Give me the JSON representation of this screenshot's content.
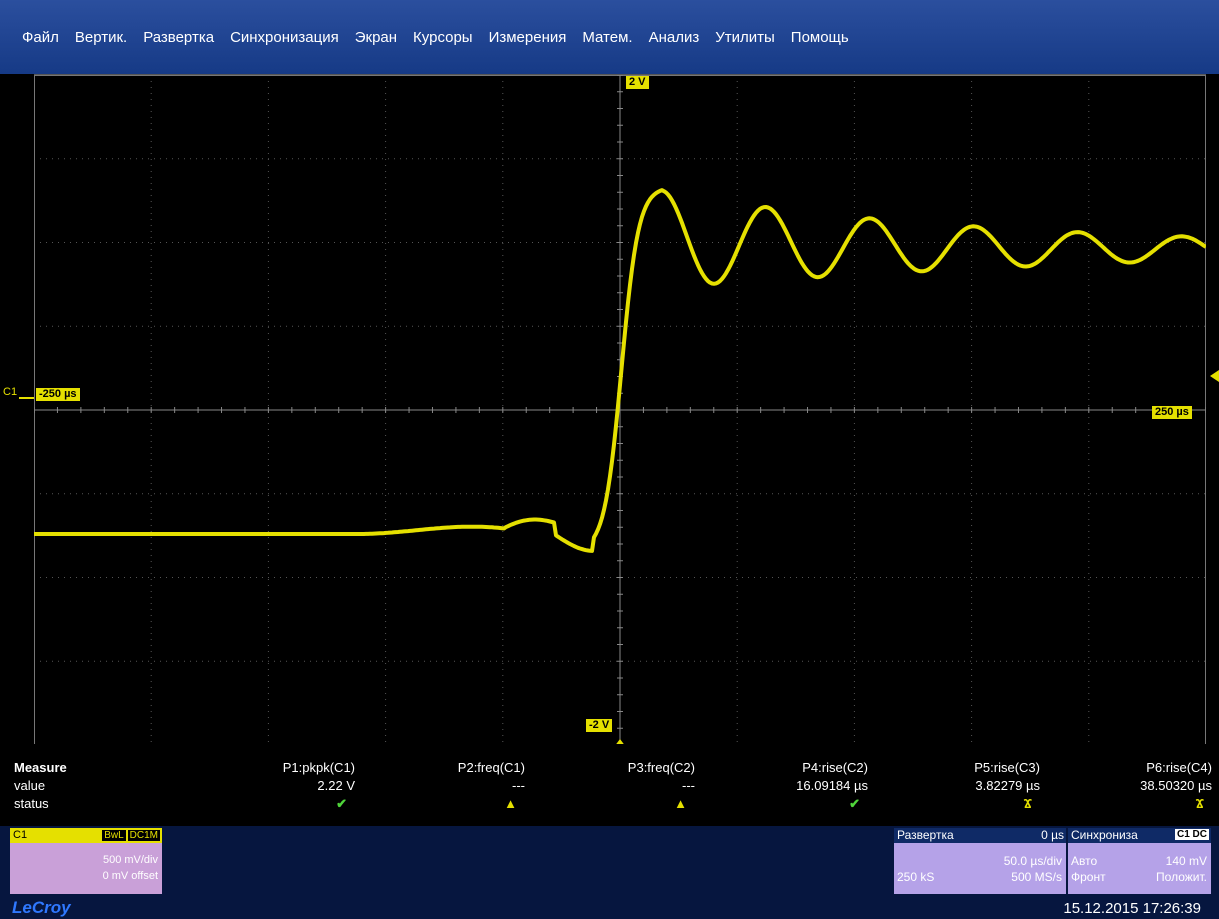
{
  "menu": [
    "Файл",
    "Вертик.",
    "Развертка",
    "Синхронизация",
    "Экран",
    "Курсоры",
    "Измерения",
    "Матем.",
    "Анализ",
    "Утилиты",
    "Помощь"
  ],
  "screen": {
    "top_marker": "2 V",
    "bottom_marker": "-2 V",
    "left_time": "-250 µs",
    "right_time": "250 µs",
    "channel_label": "C1",
    "trace_color": "#e5e000",
    "grid_divisions": {
      "x": 10,
      "y": 8
    }
  },
  "measure": {
    "title": "Measure",
    "row_value": "value",
    "row_status": "status",
    "params": [
      {
        "name": "P1:pkpk(C1)",
        "value": "2.22 V",
        "status": "✔",
        "status_kind": "ok"
      },
      {
        "name": "P2:freq(C1)",
        "value": "---",
        "status": "▲",
        "status_kind": "warn"
      },
      {
        "name": "P3:freq(C2)",
        "value": "---",
        "status": "▲",
        "status_kind": "warn"
      },
      {
        "name": "P4:rise(C2)",
        "value": "16.09184 µs",
        "status": "✔",
        "status_kind": "ok"
      },
      {
        "name": "P5:rise(C3)",
        "value": "3.82279 µs",
        "status": "Ϫ",
        "status_kind": "pers"
      },
      {
        "name": "P6:rise(C4)",
        "value": "38.50320 µs",
        "status": "Ϫ",
        "status_kind": "pers"
      }
    ]
  },
  "channel_box": {
    "name": "C1",
    "bwl": "BwL",
    "coupling": "DC1M",
    "scale": "500 mV/div",
    "offset": "0 mV offset"
  },
  "timebase": {
    "title": "Развертка",
    "delay": "0 µs",
    "scale": "50.0 µs/div",
    "samples": "250 kS",
    "rate": "500 MS/s"
  },
  "trigger": {
    "title": "Синхрониза",
    "tag": "C1 DC",
    "mode": "Авто",
    "level": "140 mV",
    "type": "Фронт",
    "slope": "Положит."
  },
  "brand": "LeCroy",
  "datetime": "15.12.2015 17:26:39"
}
